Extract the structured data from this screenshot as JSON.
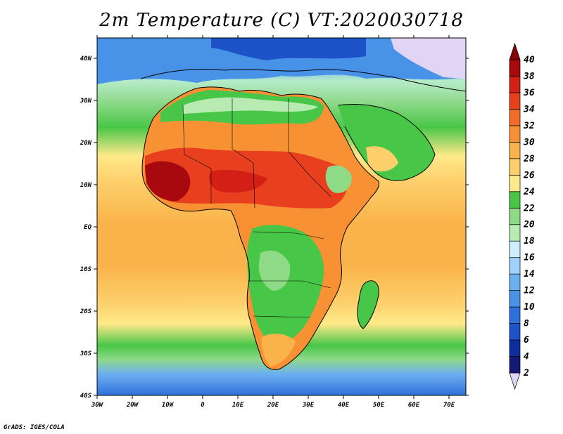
{
  "title": "2m Temperature (C) VT:2020030718",
  "credit": "GrADS: IGES/COLA",
  "map": {
    "region": "Africa",
    "lon_range": [
      -30,
      75
    ],
    "lat_range": [
      -40,
      46
    ],
    "x_ticks": [
      "30W",
      "20W",
      "10W",
      "0",
      "10E",
      "20E",
      "30E",
      "40E",
      "50E",
      "60E",
      "70E"
    ],
    "y_ticks": [
      "40S",
      "30S",
      "20S",
      "10S",
      "EQ",
      "10N",
      "20N",
      "30N",
      "40N"
    ]
  },
  "colorbar": {
    "labels": [
      "2",
      "4",
      "6",
      "8",
      "10",
      "12",
      "14",
      "16",
      "18",
      "20",
      "22",
      "24",
      "26",
      "28",
      "30",
      "32",
      "34",
      "36",
      "38",
      "40"
    ],
    "colors": [
      "#e1d5f5",
      "#141a78",
      "#0d2e9e",
      "#1d52c8",
      "#2f70dc",
      "#4892e8",
      "#6db0f0",
      "#9fd2fa",
      "#cdeefc",
      "#b8ebb2",
      "#8fda86",
      "#48c648",
      "#ffe98a",
      "#fdd06c",
      "#fab34a",
      "#f79134",
      "#f26b28",
      "#e8401f",
      "#d41f16",
      "#a8090e",
      "#830505"
    ]
  }
}
